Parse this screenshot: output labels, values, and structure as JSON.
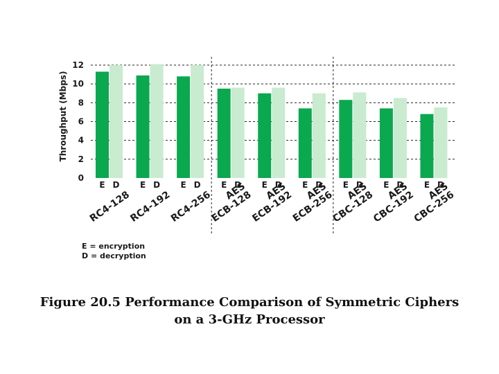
{
  "chart_data": {
    "type": "bar",
    "ylabel": "Throughput (Mbps)",
    "xlabel": "",
    "ylim": [
      0,
      12
    ],
    "yticks": [
      "0",
      "2",
      "4",
      "6",
      "8",
      "10",
      "12"
    ],
    "grid": "dashed horizontal",
    "categories": [
      "RC4-128",
      "RC4-192",
      "RC4-256",
      "AES ECB-128",
      "AES ECB-192",
      "AES ECB-256",
      "AES CBC-128",
      "AES CBC-192",
      "AES CBC-256"
    ],
    "category_lines": [
      [
        "RC4-128"
      ],
      [
        "RC4-192"
      ],
      [
        "RC4-256"
      ],
      [
        "AES",
        "ECB-128"
      ],
      [
        "AES",
        "ECB-192"
      ],
      [
        "AES",
        "ECB-256"
      ],
      [
        "AES",
        "CBC-128"
      ],
      [
        "AES",
        "CBC-192"
      ],
      [
        "AES",
        "CBC-256"
      ]
    ],
    "bar_letters": [
      "E",
      "D"
    ],
    "series": [
      {
        "values": [
          11.3,
          10.9,
          10.8,
          9.5,
          9.0,
          7.4,
          8.3,
          7.4,
          6.8
        ]
      },
      {
        "values": [
          12.0,
          12.1,
          12.0,
          9.6,
          9.6,
          9.0,
          9.1,
          8.5,
          7.5
        ]
      }
    ],
    "colors": [
      "#0aa84f",
      "#c9ebcf"
    ],
    "group_separators_after": [
      3,
      6
    ],
    "legend": [
      "E = encryption",
      "D = decryption"
    ]
  },
  "caption": {
    "line1": "Figure 20.5  Performance Comparison of Symmetric Ciphers",
    "line2": "on a 3-GHz Processor"
  }
}
